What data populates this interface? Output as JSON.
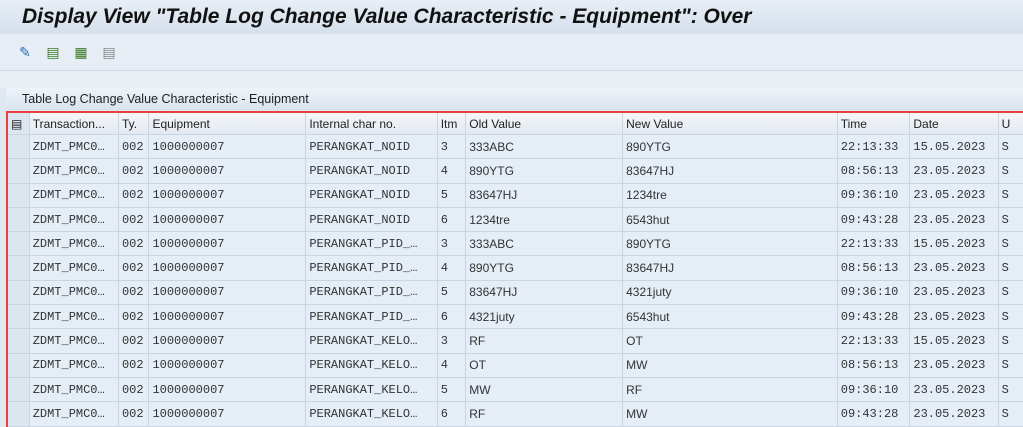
{
  "title": "Display View \"Table Log Change Value Characteristic - Equipment\": Over",
  "toolbar": [
    "glasses-pen-icon",
    "select-all-icon",
    "select-block-icon",
    "deselect-all-icon"
  ],
  "table_title": "Table Log Change Value Characteristic - Equipment",
  "columns": [
    "Transaction...",
    "Ty.",
    "Equipment",
    "Internal char no.",
    "Itm",
    "Old Value",
    "New Value",
    "Time",
    "Date",
    "U"
  ],
  "rows": [
    [
      "ZDMT_PMC0…",
      "002",
      "1000000007",
      "PERANGKAT_NOID",
      "3",
      "333ABC",
      "890YTG",
      "22:13:33",
      "15.05.2023",
      "S"
    ],
    [
      "ZDMT_PMC0…",
      "002",
      "1000000007",
      "PERANGKAT_NOID",
      "4",
      "890YTG",
      "83647HJ",
      "08:56:13",
      "23.05.2023",
      "S"
    ],
    [
      "ZDMT_PMC0…",
      "002",
      "1000000007",
      "PERANGKAT_NOID",
      "5",
      "83647HJ",
      "1234tre",
      "09:36:10",
      "23.05.2023",
      "S"
    ],
    [
      "ZDMT_PMC0…",
      "002",
      "1000000007",
      "PERANGKAT_NOID",
      "6",
      "1234tre",
      "6543hut",
      "09:43:28",
      "23.05.2023",
      "S"
    ],
    [
      "ZDMT_PMC0…",
      "002",
      "1000000007",
      "PERANGKAT_PID_…",
      "3",
      "333ABC",
      "890YTG",
      "22:13:33",
      "15.05.2023",
      "S"
    ],
    [
      "ZDMT_PMC0…",
      "002",
      "1000000007",
      "PERANGKAT_PID_…",
      "4",
      "890YTG",
      "83647HJ",
      "08:56:13",
      "23.05.2023",
      "S"
    ],
    [
      "ZDMT_PMC0…",
      "002",
      "1000000007",
      "PERANGKAT_PID_…",
      "5",
      "83647HJ",
      "4321juty",
      "09:36:10",
      "23.05.2023",
      "S"
    ],
    [
      "ZDMT_PMC0…",
      "002",
      "1000000007",
      "PERANGKAT_PID_…",
      "6",
      "4321juty",
      "6543hut",
      "09:43:28",
      "23.05.2023",
      "S"
    ],
    [
      "ZDMT_PMC0…",
      "002",
      "1000000007",
      "PERANGKAT_KELO…",
      "3",
      "RF",
      "OT",
      "22:13:33",
      "15.05.2023",
      "S"
    ],
    [
      "ZDMT_PMC0…",
      "002",
      "1000000007",
      "PERANGKAT_KELO…",
      "4",
      "OT",
      "MW",
      "08:56:13",
      "23.05.2023",
      "S"
    ],
    [
      "ZDMT_PMC0…",
      "002",
      "1000000007",
      "PERANGKAT_KELO…",
      "5",
      "MW",
      "RF",
      "09:36:10",
      "23.05.2023",
      "S"
    ],
    [
      "ZDMT_PMC0…",
      "002",
      "1000000007",
      "PERANGKAT_KELO…",
      "6",
      "RF",
      "MW",
      "09:43:28",
      "23.05.2023",
      "S"
    ]
  ]
}
